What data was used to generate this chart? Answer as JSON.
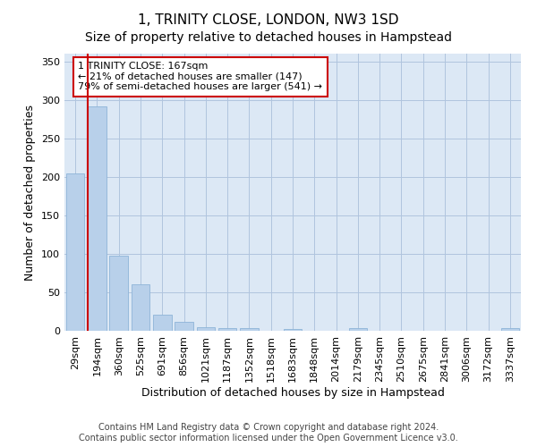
{
  "title": "1, TRINITY CLOSE, LONDON, NW3 1SD",
  "subtitle": "Size of property relative to detached houses in Hampstead",
  "xlabel": "Distribution of detached houses by size in Hampstead",
  "ylabel": "Number of detached properties",
  "categories": [
    "29sqm",
    "194sqm",
    "360sqm",
    "525sqm",
    "691sqm",
    "856sqm",
    "1021sqm",
    "1187sqm",
    "1352sqm",
    "1518sqm",
    "1683sqm",
    "1848sqm",
    "2014sqm",
    "2179sqm",
    "2345sqm",
    "2510sqm",
    "2675sqm",
    "2841sqm",
    "3006sqm",
    "3172sqm",
    "3337sqm"
  ],
  "values": [
    204,
    291,
    97,
    60,
    21,
    12,
    5,
    4,
    3,
    0,
    2,
    0,
    0,
    3,
    0,
    0,
    0,
    0,
    0,
    0,
    3
  ],
  "bar_color": "#b8d0ea",
  "bar_edge_color": "#8eb4d8",
  "highlight_line_color": "#cc0000",
  "annotation_text": "1 TRINITY CLOSE: 167sqm\n← 21% of detached houses are smaller (147)\n79% of semi-detached houses are larger (541) →",
  "annotation_box_color": "#ffffff",
  "annotation_box_edge": "#cc0000",
  "ylim": [
    0,
    360
  ],
  "yticks": [
    0,
    50,
    100,
    150,
    200,
    250,
    300,
    350
  ],
  "background_color": "#dce8f5",
  "footer_text": "Contains HM Land Registry data © Crown copyright and database right 2024.\nContains public sector information licensed under the Open Government Licence v3.0.",
  "title_fontsize": 11,
  "subtitle_fontsize": 10,
  "axis_label_fontsize": 9,
  "tick_fontsize": 8,
  "annotation_fontsize": 8,
  "footer_fontsize": 7
}
